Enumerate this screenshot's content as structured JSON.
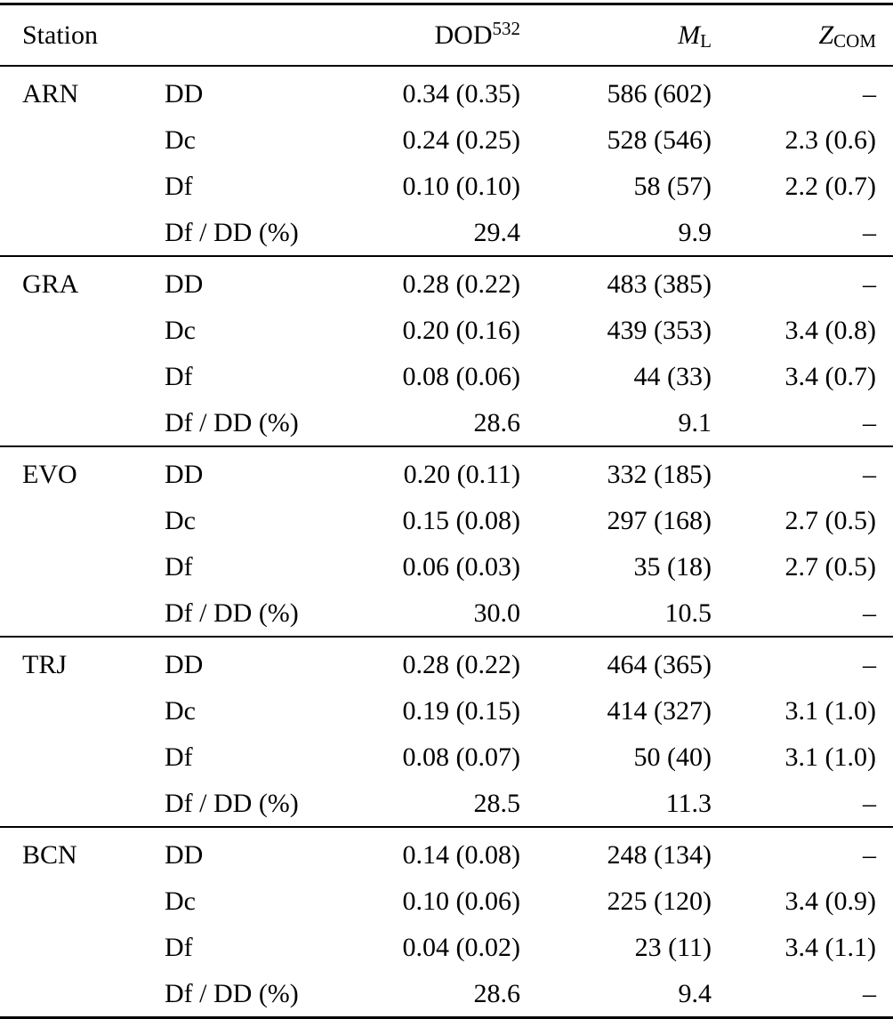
{
  "table": {
    "header": {
      "station": "Station",
      "dod_base": "DOD",
      "dod_sup": "532",
      "ml_base": "M",
      "ml_sub": "L",
      "zcom_base": "Z",
      "zcom_sub": "COM"
    },
    "groups": [
      {
        "station": "ARN",
        "rows": [
          {
            "label": "DD",
            "dod": "0.34 (0.35)",
            "ml": "586 (602)",
            "zcom": "–"
          },
          {
            "label": "Dc",
            "dod": "0.24 (0.25)",
            "ml": "528 (546)",
            "zcom": "2.3 (0.6)"
          },
          {
            "label": "Df",
            "dod": "0.10 (0.10)",
            "ml": "58 (57)",
            "zcom": "2.2 (0.7)"
          },
          {
            "label": "Df / DD (%)",
            "dod": "29.4",
            "ml": "9.9",
            "zcom": "–"
          }
        ]
      },
      {
        "station": "GRA",
        "rows": [
          {
            "label": "DD",
            "dod": "0.28 (0.22)",
            "ml": "483 (385)",
            "zcom": "–"
          },
          {
            "label": "Dc",
            "dod": "0.20 (0.16)",
            "ml": "439 (353)",
            "zcom": "3.4 (0.8)"
          },
          {
            "label": "Df",
            "dod": "0.08 (0.06)",
            "ml": "44 (33)",
            "zcom": "3.4 (0.7)"
          },
          {
            "label": "Df / DD (%)",
            "dod": "28.6",
            "ml": "9.1",
            "zcom": "–"
          }
        ]
      },
      {
        "station": "EVO",
        "rows": [
          {
            "label": "DD",
            "dod": "0.20 (0.11)",
            "ml": "332 (185)",
            "zcom": "–"
          },
          {
            "label": "Dc",
            "dod": "0.15 (0.08)",
            "ml": "297 (168)",
            "zcom": "2.7 (0.5)"
          },
          {
            "label": "Df",
            "dod": "0.06 (0.03)",
            "ml": "35 (18)",
            "zcom": "2.7 (0.5)"
          },
          {
            "label": "Df / DD (%)",
            "dod": "30.0",
            "ml": "10.5",
            "zcom": "–"
          }
        ]
      },
      {
        "station": "TRJ",
        "rows": [
          {
            "label": "DD",
            "dod": "0.28 (0.22)",
            "ml": "464 (365)",
            "zcom": "–"
          },
          {
            "label": "Dc",
            "dod": "0.19 (0.15)",
            "ml": "414 (327)",
            "zcom": "3.1 (1.0)"
          },
          {
            "label": "Df",
            "dod": "0.08 (0.07)",
            "ml": "50 (40)",
            "zcom": "3.1 (1.0)"
          },
          {
            "label": "Df / DD (%)",
            "dod": "28.5",
            "ml": "11.3",
            "zcom": "–"
          }
        ]
      },
      {
        "station": "BCN",
        "rows": [
          {
            "label": "DD",
            "dod": "0.14 (0.08)",
            "ml": "248 (134)",
            "zcom": "–"
          },
          {
            "label": "Dc",
            "dod": "0.10 (0.06)",
            "ml": "225 (120)",
            "zcom": "3.4 (0.9)"
          },
          {
            "label": "Df",
            "dod": "0.04 (0.02)",
            "ml": "23 (11)",
            "zcom": "3.4 (1.1)"
          },
          {
            "label": "Df / DD (%)",
            "dod": "28.6",
            "ml": "9.4",
            "zcom": "–"
          }
        ]
      }
    ]
  }
}
